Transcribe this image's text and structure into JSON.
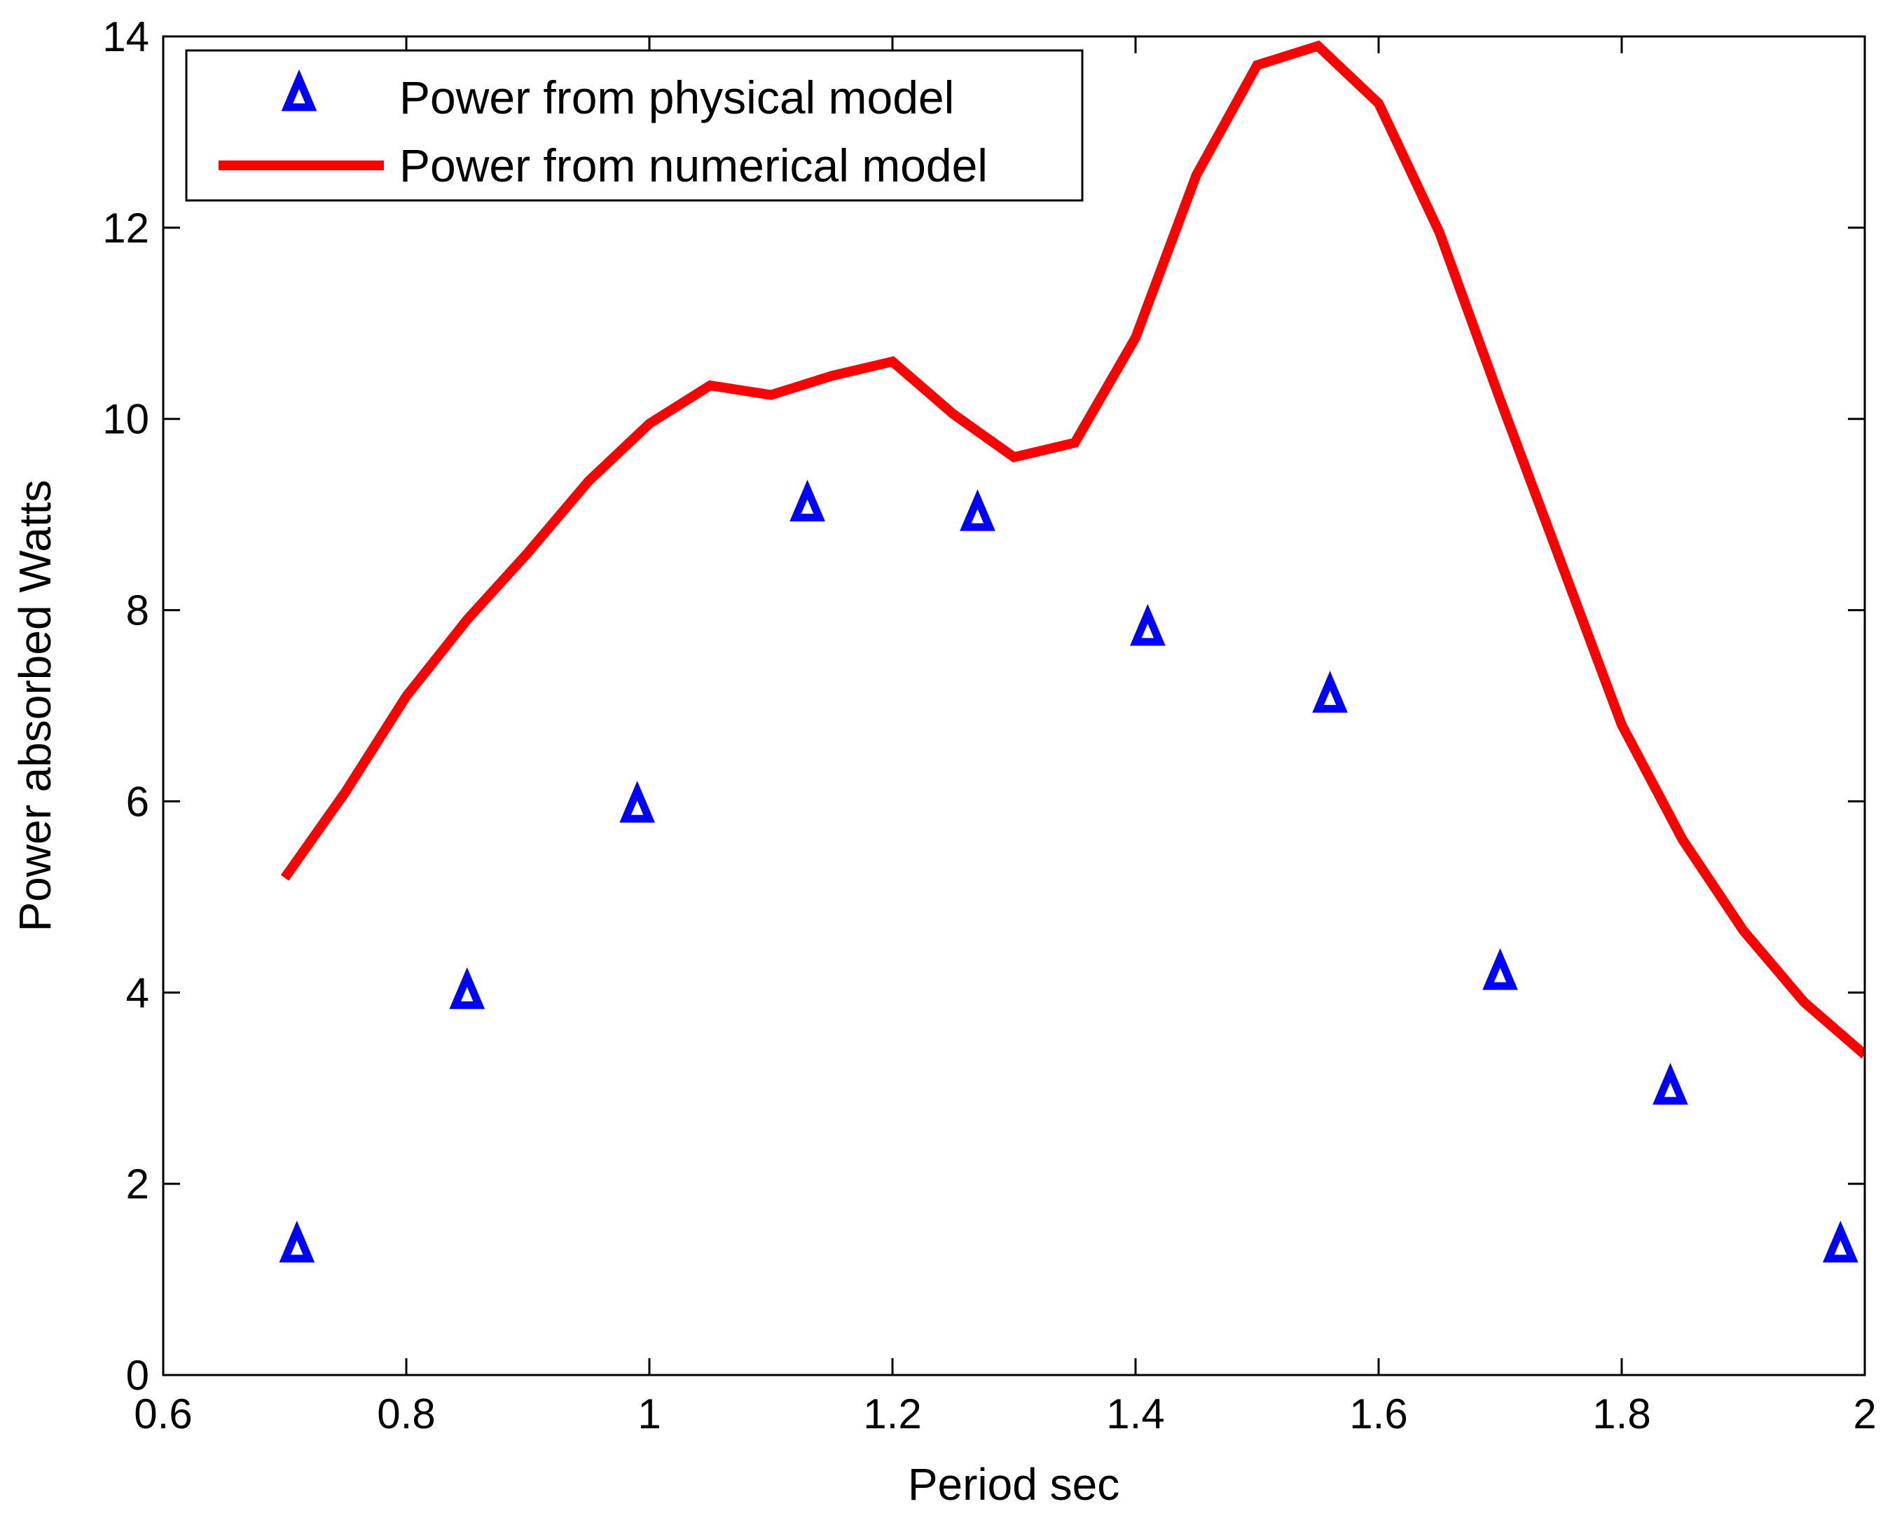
{
  "chart_data": {
    "type": "line",
    "title": "",
    "xlabel": "Period sec",
    "ylabel": "Power absorbed Watts",
    "xlim": [
      0.6,
      2
    ],
    "ylim": [
      0,
      14
    ],
    "xticks": [
      0.6,
      0.8,
      1,
      1.2,
      1.4,
      1.6,
      1.8,
      2
    ],
    "xtick_labels": [
      "0.6",
      "0.8",
      "1",
      "1.2",
      "1.4",
      "1.6",
      "1.8",
      "2"
    ],
    "yticks": [
      0,
      2,
      4,
      6,
      8,
      10,
      12,
      14
    ],
    "ytick_labels": [
      "0",
      "2",
      "4",
      "6",
      "8",
      "10",
      "12",
      "14"
    ],
    "grid": false,
    "legend_position": "top-left",
    "series": [
      {
        "name": "Power from physical model",
        "kind": "scatter",
        "marker": "triangle",
        "color": "#0000ff",
        "x": [
          0.71,
          0.85,
          0.99,
          1.13,
          1.27,
          1.41,
          1.56,
          1.7,
          1.84,
          1.98
        ],
        "y": [
          1.35,
          4.0,
          5.95,
          9.1,
          9.0,
          7.8,
          7.1,
          4.2,
          3.0,
          1.35
        ]
      },
      {
        "name": "Power from numerical model",
        "kind": "line",
        "color": "#ff0000",
        "x": [
          0.7,
          0.75,
          0.8,
          0.85,
          0.9,
          0.95,
          1.0,
          1.05,
          1.1,
          1.15,
          1.2,
          1.25,
          1.3,
          1.35,
          1.4,
          1.45,
          1.5,
          1.55,
          1.6,
          1.65,
          1.7,
          1.75,
          1.8,
          1.85,
          1.9,
          1.95,
          2.0
        ],
        "y": [
          5.2,
          6.1,
          7.1,
          7.9,
          8.6,
          9.35,
          9.95,
          10.35,
          10.25,
          10.45,
          10.6,
          10.05,
          9.6,
          9.75,
          10.85,
          12.55,
          13.7,
          13.9,
          13.3,
          11.95,
          10.2,
          8.5,
          6.8,
          5.6,
          4.65,
          3.9,
          3.35
        ]
      }
    ]
  }
}
